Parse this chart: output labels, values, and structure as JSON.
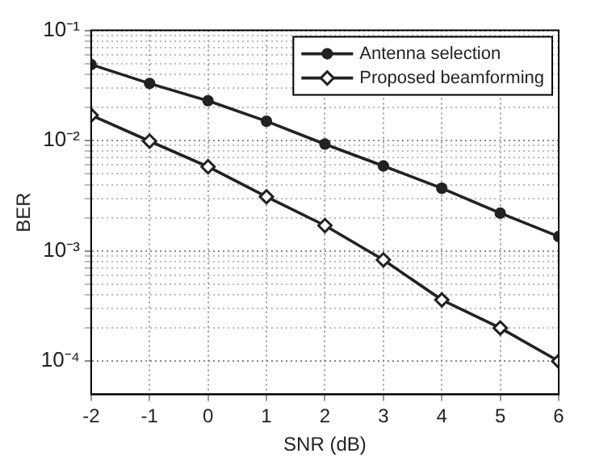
{
  "chart_data": {
    "type": "line",
    "xlabel": "SNR (dB)",
    "ylabel": "BER",
    "log": "y",
    "grid": true,
    "legend": "top right",
    "line_style": "solid",
    "x": [
      -2,
      -1,
      0,
      1,
      2,
      3,
      4,
      5,
      6
    ],
    "xlim": [
      -2,
      6
    ],
    "xticks": [
      -2,
      -1,
      0,
      1,
      2,
      3,
      4,
      5,
      6
    ],
    "ylim": [
      5e-05,
      0.1
    ],
    "yticks": [
      {
        "value": 0.0001,
        "label": "10⁻⁴"
      },
      {
        "value": 0.0002,
        "label": null
      },
      {
        "value": 0.0003,
        "label": null
      },
      {
        "value": 0.0004,
        "label": null
      },
      {
        "value": 0.0005,
        "label": null
      },
      {
        "value": 0.0006,
        "label": null
      },
      {
        "value": 0.0007,
        "label": null
      },
      {
        "value": 0.0008,
        "label": null
      },
      {
        "value": 0.0009,
        "label": null
      },
      {
        "value": 0.001,
        "label": "10⁻³"
      },
      {
        "value": 0.002,
        "label": null
      },
      {
        "value": 0.003,
        "label": null
      },
      {
        "value": 0.004,
        "label": null
      },
      {
        "value": 0.005,
        "label": null
      },
      {
        "value": 0.006,
        "label": null
      },
      {
        "value": 0.007,
        "label": null
      },
      {
        "value": 0.008,
        "label": null
      },
      {
        "value": 0.009,
        "label": null
      },
      {
        "value": 0.01,
        "label": "10⁻²"
      },
      {
        "value": 0.02,
        "label": null
      },
      {
        "value": 0.03,
        "label": null
      },
      {
        "value": 0.04,
        "label": null
      },
      {
        "value": 0.05,
        "label": null
      },
      {
        "value": 0.06,
        "label": null
      },
      {
        "value": 0.07,
        "label": null
      },
      {
        "value": 0.08,
        "label": null
      },
      {
        "value": 0.09,
        "label": null
      },
      {
        "value": 0.1,
        "label": "10⁻¹"
      }
    ],
    "series": [
      {
        "name": "Antenna selection",
        "color": "#222222",
        "marker": "circle",
        "values": [
          0.049,
          0.033,
          0.023,
          0.015,
          0.0093,
          0.0059,
          0.0037,
          0.0022,
          0.00135
        ]
      },
      {
        "name": "Proposed beamforming",
        "color": "#222222",
        "marker": "diamond",
        "values": [
          0.017,
          0.0099,
          0.0058,
          0.0031,
          0.0017,
          0.00083,
          0.00036,
          0.0002,
          0.0001
        ]
      }
    ]
  }
}
